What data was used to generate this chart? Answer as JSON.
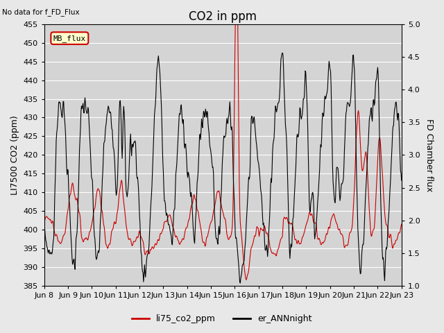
{
  "title": "CO2 in ppm",
  "ylabel_left": "LI7500 CO2 (ppm)",
  "ylabel_right": "FD Chamber flux",
  "ylim_left": [
    385,
    455
  ],
  "ylim_right": [
    1.0,
    5.0
  ],
  "no_data_text": "No data for f_FD_Flux",
  "mb_flux_label": "MB_flux",
  "legend_labels": [
    "li75_co2_ppm",
    "er_ANNnight"
  ],
  "line1_color": "#cc0000",
  "line2_color": "#000000",
  "bg_color": "#e8e8e8",
  "plot_bg_color": "#d4d4d4",
  "grid_color": "#ffffff",
  "title_fontsize": 12,
  "label_fontsize": 9,
  "tick_fontsize": 8,
  "x_tick_labels": [
    "Jun 8",
    "Jun 9",
    "Jun 10",
    "Jun 11",
    "Jun 12",
    "Jun 13",
    "Jun 14",
    "Jun 15",
    "Jun 16",
    "Jun 17",
    "Jun 18",
    "Jun 19",
    "Jun 20",
    "Jun 21",
    "Jun 22",
    "Jun 23"
  ],
  "x_tick_positions": [
    0,
    48,
    96,
    144,
    192,
    240,
    288,
    336,
    384,
    432,
    480,
    528,
    576,
    624,
    672,
    720
  ]
}
